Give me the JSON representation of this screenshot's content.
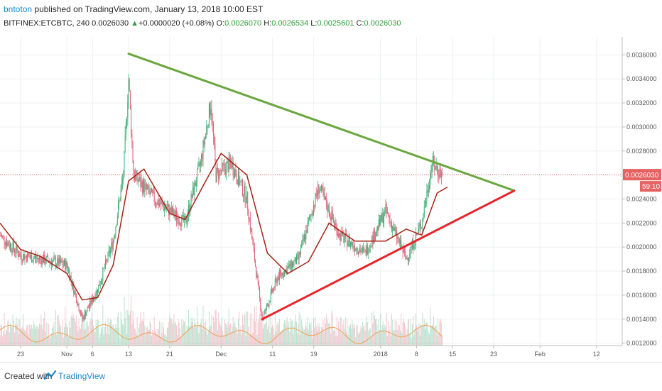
{
  "header": {
    "author": "bntoton",
    "published": "published on TradingView.com, January 13, 2018 10:00 EST",
    "symbol": "BITFINEX:ETCBTC, 240",
    "last": "0.0026030",
    "change_arrow": "▲",
    "change": "+0.0000020 (+0.08%)",
    "o_label": "O:",
    "o": "0.0026070",
    "h_label": "H:",
    "h": "0.0026534",
    "l_label": "L:",
    "l": "0.0025601",
    "c_label": "C:",
    "c": "0.0026030"
  },
  "footer": {
    "created_with": "Created with",
    "brand": "TradingView"
  },
  "colors": {
    "up": "#3fae76",
    "down": "#e0607a",
    "ma": "#a52414",
    "volume_ma": "#f0a050",
    "resistance": "#6aa73f",
    "support": "#e8232a",
    "price_tag": "#e66161"
  },
  "chart_data": {
    "type": "candlestick",
    "title": "",
    "ylim": [
      0.00118,
      0.00375
    ],
    "y_ticks": [
      "0.0036000",
      "0.0034000",
      "0.0032000",
      "0.0030000",
      "0.0028000",
      "0.0026000",
      "0.0024000",
      "0.0022000",
      "0.0020000",
      "0.0018000",
      "0.0016000",
      "0.0014000",
      "0.0012000"
    ],
    "x_ticks": [
      "23",
      "Nov",
      "6",
      "13",
      "21",
      "Dec",
      "11",
      "19",
      "2018",
      "8",
      "15",
      "23",
      "Feb",
      "12"
    ],
    "x_range": [
      "2017-10-19",
      "2018-02-17"
    ],
    "price_label": "0.0026030",
    "countdown_label": "59:10",
    "price_series": [
      {
        "date": "2017-10-19",
        "value": 0.0021
      },
      {
        "date": "2017-10-23",
        "value": 0.00193
      },
      {
        "date": "2017-10-27",
        "value": 0.0019
      },
      {
        "date": "2017-11-01",
        "value": 0.00185
      },
      {
        "date": "2017-11-04",
        "value": 0.0014
      },
      {
        "date": "2017-11-07",
        "value": 0.00165
      },
      {
        "date": "2017-11-10",
        "value": 0.00205
      },
      {
        "date": "2017-11-12",
        "value": 0.0026
      },
      {
        "date": "2017-11-13",
        "value": 0.0034
      },
      {
        "date": "2017-11-14",
        "value": 0.0026
      },
      {
        "date": "2017-11-18",
        "value": 0.0024
      },
      {
        "date": "2017-11-21",
        "value": 0.0023
      },
      {
        "date": "2017-11-24",
        "value": 0.0022
      },
      {
        "date": "2017-11-27",
        "value": 0.0027
      },
      {
        "date": "2017-11-29",
        "value": 0.0032
      },
      {
        "date": "2017-11-30",
        "value": 0.0026
      },
      {
        "date": "2017-12-03",
        "value": 0.0027
      },
      {
        "date": "2017-12-06",
        "value": 0.0024
      },
      {
        "date": "2017-12-09",
        "value": 0.0014
      },
      {
        "date": "2017-12-12",
        "value": 0.00175
      },
      {
        "date": "2017-12-16",
        "value": 0.0019
      },
      {
        "date": "2017-12-20",
        "value": 0.0025
      },
      {
        "date": "2017-12-24",
        "value": 0.0021
      },
      {
        "date": "2017-12-29",
        "value": 0.00195
      },
      {
        "date": "2018-01-02",
        "value": 0.0023
      },
      {
        "date": "2018-01-06",
        "value": 0.0019
      },
      {
        "date": "2018-01-09",
        "value": 0.0022
      },
      {
        "date": "2018-01-11",
        "value": 0.0027
      },
      {
        "date": "2018-01-13",
        "value": 0.0026
      }
    ],
    "moving_average": [
      {
        "date": "2017-10-19",
        "value": 0.0022
      },
      {
        "date": "2017-10-23",
        "value": 0.00198
      },
      {
        "date": "2017-10-27",
        "value": 0.00192
      },
      {
        "date": "2017-11-01",
        "value": 0.00178
      },
      {
        "date": "2017-11-04",
        "value": 0.00156
      },
      {
        "date": "2017-11-07",
        "value": 0.00158
      },
      {
        "date": "2017-11-10",
        "value": 0.00185
      },
      {
        "date": "2017-11-13",
        "value": 0.00255
      },
      {
        "date": "2017-11-16",
        "value": 0.00265
      },
      {
        "date": "2017-11-21",
        "value": 0.00228
      },
      {
        "date": "2017-11-24",
        "value": 0.00223
      },
      {
        "date": "2017-11-28",
        "value": 0.00255
      },
      {
        "date": "2017-12-01",
        "value": 0.00278
      },
      {
        "date": "2017-12-06",
        "value": 0.0026
      },
      {
        "date": "2017-12-10",
        "value": 0.00195
      },
      {
        "date": "2017-12-14",
        "value": 0.00178
      },
      {
        "date": "2017-12-18",
        "value": 0.00188
      },
      {
        "date": "2017-12-22",
        "value": 0.0022
      },
      {
        "date": "2017-12-27",
        "value": 0.00205
      },
      {
        "date": "2018-01-02",
        "value": 0.00205
      },
      {
        "date": "2018-01-06",
        "value": 0.00215
      },
      {
        "date": "2018-01-09",
        "value": 0.0021
      },
      {
        "date": "2018-01-12",
        "value": 0.00245
      },
      {
        "date": "2018-01-14",
        "value": 0.0025
      }
    ],
    "trendlines": [
      {
        "name": "resistance",
        "start": {
          "date": "2017-11-13",
          "value": 0.00361
        },
        "end": {
          "date": "2018-01-27",
          "value": 0.00247
        }
      },
      {
        "name": "support",
        "start": {
          "date": "2017-12-09",
          "value": 0.0014
        },
        "end": {
          "date": "2018-01-27",
          "value": 0.00247
        }
      }
    ]
  }
}
